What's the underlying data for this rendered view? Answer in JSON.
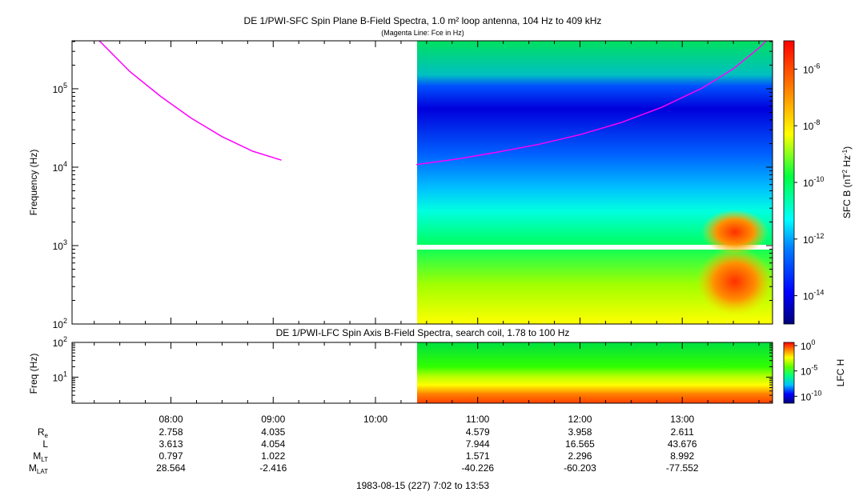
{
  "top_title": "DE 1/PWI-SFC  Spin Plane B-Field Spectra, 1.0 m² loop antenna, 104 Hz to 409 kHz",
  "top_subtitle": "(Magenta Line: Fce in Hz)",
  "bottom_title": "DE 1/PWI-LFC  Spin Axis B-Field Spectra, search coil, 1.78 to 100 Hz",
  "footer": "1983-08-15 (227) 7:02 to 13:53",
  "colors": {
    "fce_line": "#ff00ff",
    "frame": "#000000"
  },
  "chart_data": [
    {
      "type": "heatmap",
      "title": "DE 1/PWI-SFC  Spin Plane B-Field Spectra, 1.0 m² loop antenna, 104 Hz to 409 kHz",
      "ylabel": "Frequency (Hz)",
      "ylabel_display": "Frequency (Hz)",
      "yscale": "log",
      "ylim": [
        100,
        409000
      ],
      "ytick_exponents": [
        "2",
        "3",
        "4",
        "5"
      ],
      "xlim": [
        7.033,
        13.883
      ],
      "data_start_hour": 10.4,
      "gap_band_hz": [
        900,
        1000
      ],
      "colorbar": {
        "label_text": "SFC B (nT",
        "label_sup": "2",
        "label_mid": " Hz",
        "label_sup2": "-1",
        "label_end": ")",
        "scale": "log",
        "range": [
          "1e-15",
          "1e-5"
        ],
        "tick_exponents": [
          "-6",
          "-8",
          "-10",
          "-12",
          "-14"
        ]
      },
      "fce_line_hz": {
        "segment1": {
          "x": [
            7.3,
            7.6,
            7.9,
            8.2,
            8.5,
            8.8,
            9.08
          ],
          "y": [
            420000,
            165000,
            80000,
            42000,
            24500,
            16000,
            12300
          ]
        },
        "segment2": {
          "x": [
            10.4,
            10.8,
            11.2,
            11.6,
            12.0,
            12.4,
            12.8,
            13.2,
            13.5,
            13.75,
            13.82
          ],
          "y": [
            10800,
            12700,
            15600,
            19600,
            26000,
            37000,
            58000,
            103000,
            180000,
            330000,
            409000
          ]
        }
      }
    },
    {
      "type": "heatmap",
      "title": "DE 1/PWI-LFC  Spin Axis B-Field Spectra, search coil, 1.78 to 100 Hz",
      "ylabel": "Freq (Hz)",
      "yscale": "log",
      "ylim": [
        1.78,
        100
      ],
      "ytick_exponents": [
        "2",
        "1"
      ],
      "xlim": [
        7.033,
        13.883
      ],
      "data_start_hour": 10.4,
      "colorbar": {
        "label": "LFC H",
        "scale": "log",
        "tick_labels": [
          {
            "base": "10",
            "exp": "0"
          },
          {
            "base": "10",
            "exp": "-5"
          },
          {
            "base": "10",
            "exp": "-10"
          }
        ]
      }
    }
  ],
  "time_axis": {
    "ticks": [
      {
        "hour": 8,
        "label": "08:00"
      },
      {
        "hour": 9,
        "label": "09:00"
      },
      {
        "hour": 10,
        "label": "10:00"
      },
      {
        "hour": 11,
        "label": "11:00"
      },
      {
        "hour": 12,
        "label": "12:00"
      },
      {
        "hour": 13,
        "label": "13:00"
      }
    ],
    "minor_step_min": 15
  },
  "ephemeris": {
    "rows": [
      {
        "label": "R",
        "sub": "e",
        "values": [
          "2.758",
          "4.035",
          "",
          "4.579",
          "3.958",
          "2.611"
        ]
      },
      {
        "label": "L",
        "sub": "",
        "values": [
          "3.613",
          "4.054",
          "",
          "7.944",
          "16.565",
          "43.676"
        ]
      },
      {
        "label": "M",
        "sub": "LT",
        "values": [
          "0.797",
          "1.022",
          "",
          "1.571",
          "2.296",
          "8.992"
        ]
      },
      {
        "label": "M",
        "sub": "LAT",
        "values": [
          "28.564",
          "-2.416",
          "",
          "-40.226",
          "-60.203",
          "-77.552"
        ]
      }
    ]
  }
}
